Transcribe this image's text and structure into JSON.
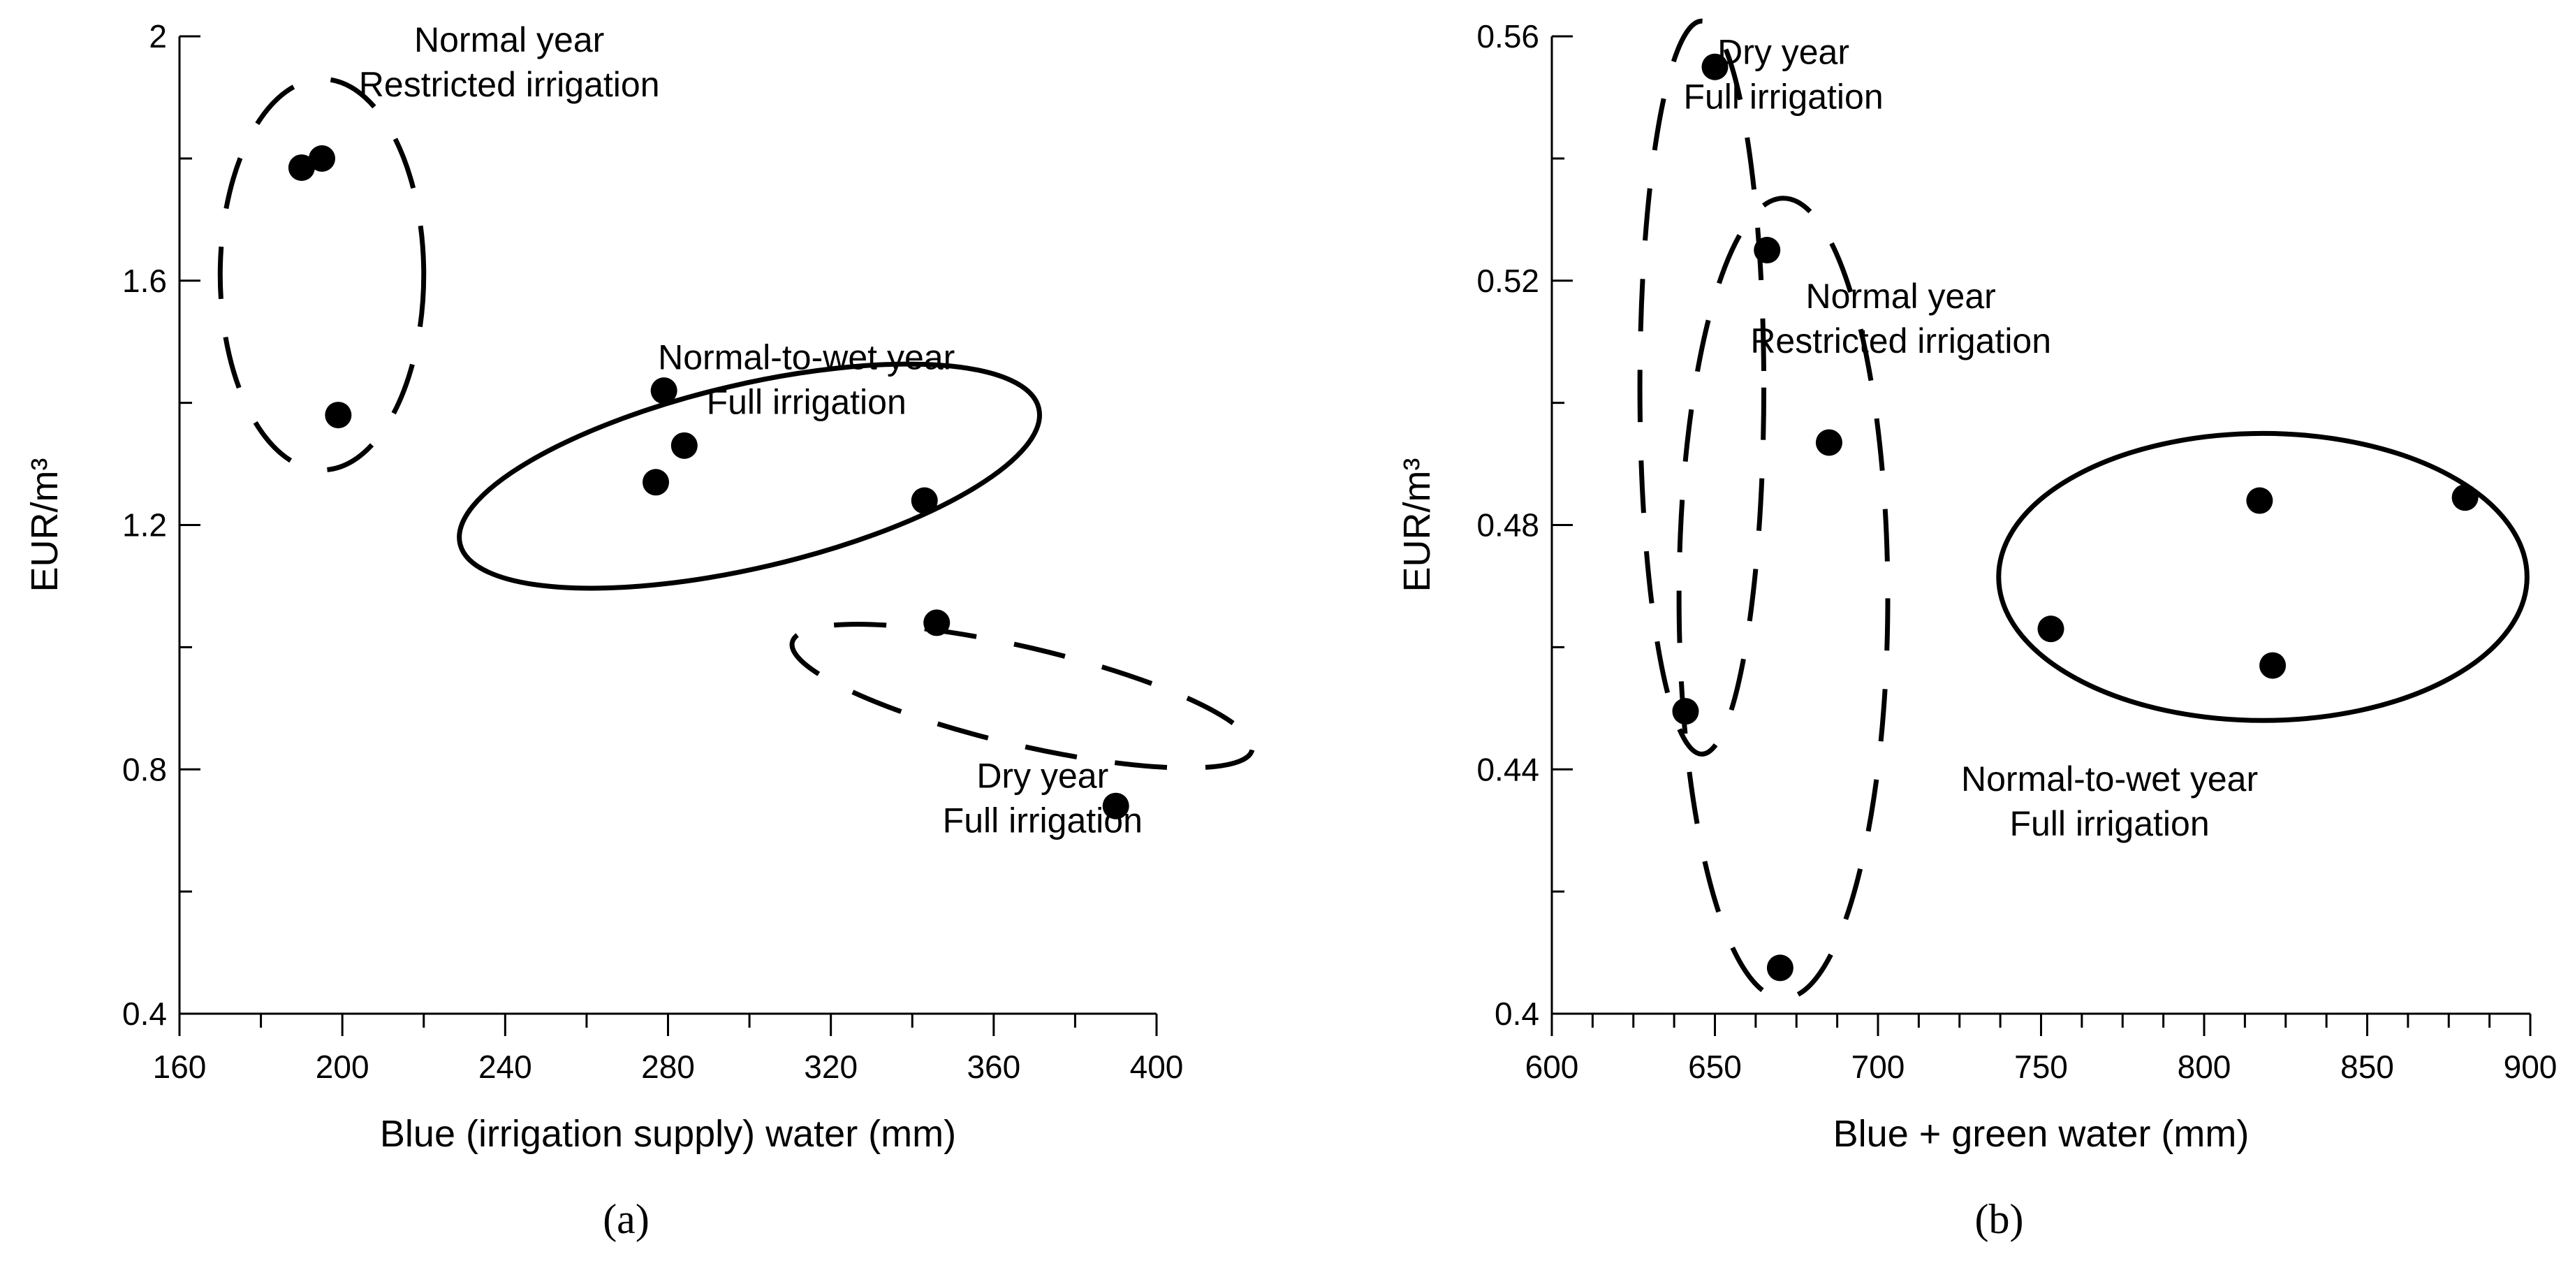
{
  "chart_data": [
    {
      "type": "scatter",
      "panel_label": "(a)",
      "xlabel": "Blue (irrigation supply) water (mm)",
      "ylabel": "EUR/m³",
      "xlim": [
        160,
        400
      ],
      "ylim": [
        0.4,
        2.0
      ],
      "x_ticks": [
        160,
        200,
        240,
        280,
        320,
        360,
        400
      ],
      "x_tick_labels": [
        "160",
        "200",
        "240",
        "280",
        "320",
        "360",
        "400"
      ],
      "x_minor_step": 20,
      "y_ticks": [
        0.4,
        0.8,
        1.2,
        1.6,
        2.0
      ],
      "y_tick_labels": [
        "0.4",
        "0.8",
        "1.2",
        "1.6",
        "2"
      ],
      "y_minor_step": 0.2,
      "points": [
        {
          "x": 190,
          "y": 1.785
        },
        {
          "x": 195,
          "y": 1.8
        },
        {
          "x": 199,
          "y": 1.38
        },
        {
          "x": 279,
          "y": 1.42
        },
        {
          "x": 284,
          "y": 1.33
        },
        {
          "x": 277,
          "y": 1.27
        },
        {
          "x": 343,
          "y": 1.24
        },
        {
          "x": 346,
          "y": 1.04
        },
        {
          "x": 390,
          "y": 0.74
        }
      ],
      "groups": [
        {
          "name": "Normal year, Restricted irrigation",
          "style": "dashed",
          "cx": 195,
          "cy": 1.61,
          "rx": 25,
          "ry": 0.32,
          "angle": 0
        },
        {
          "name": "Normal-to-wet year, Full irrigation",
          "style": "solid",
          "cx": 300,
          "cy": 1.28,
          "rx": 73,
          "ry": 0.15,
          "angle": 0.23
        },
        {
          "name": "Dry year, Full irrigation",
          "style": "dashed",
          "cx": 367,
          "cy": 0.92,
          "rx": 58,
          "ry": 0.08,
          "angle": -0.23
        }
      ],
      "annotations": [
        {
          "lines": [
            "Normal year",
            "Restricted irrigation"
          ],
          "x": 241,
          "y": 1.975
        },
        {
          "lines": [
            "Normal-to-wet year",
            "Full irrigation"
          ],
          "x": 314,
          "y": 1.455
        },
        {
          "lines": [
            "Dry year",
            "Full irrigation"
          ],
          "x": 372,
          "y": 0.77
        }
      ]
    },
    {
      "type": "scatter",
      "panel_label": "(b)",
      "xlabel": "Blue + green water (mm)",
      "ylabel": "EUR/m³",
      "xlim": [
        600,
        900
      ],
      "ylim": [
        0.4,
        0.56
      ],
      "x_ticks": [
        600,
        650,
        700,
        750,
        800,
        850,
        900
      ],
      "x_tick_labels": [
        "600",
        "650",
        "700",
        "750",
        "800",
        "850",
        "900"
      ],
      "x_minor_step": 12.5,
      "y_ticks": [
        0.4,
        0.44,
        0.48,
        0.52,
        0.56
      ],
      "y_tick_labels": [
        "0.4",
        "0.44",
        "0.48",
        "0.52",
        "0.56"
      ],
      "y_minor_step": 0.02,
      "points": [
        {
          "x": 650,
          "y": 0.555
        },
        {
          "x": 666,
          "y": 0.525
        },
        {
          "x": 685,
          "y": 0.4935
        },
        {
          "x": 641,
          "y": 0.4495
        },
        {
          "x": 670,
          "y": 0.4075
        },
        {
          "x": 753,
          "y": 0.463
        },
        {
          "x": 817,
          "y": 0.484
        },
        {
          "x": 880,
          "y": 0.4845
        },
        {
          "x": 821,
          "y": 0.457
        }
      ],
      "groups": [
        {
          "name": "Dry year, Full irrigation",
          "style": "dashed",
          "cx": 646,
          "cy": 0.5025,
          "rx": 19,
          "ry": 0.06,
          "angle": 0
        },
        {
          "name": "Normal year, Restricted irrigation",
          "style": "dashed",
          "cx": 671,
          "cy": 0.468,
          "rx": 32,
          "ry": 0.0655,
          "angle": 0
        },
        {
          "name": "Normal-to-wet year, Full irrigation",
          "style": "solid",
          "cx": 818,
          "cy": 0.4715,
          "rx": 81,
          "ry": 0.0235,
          "angle": 0
        }
      ],
      "annotations": [
        {
          "lines": [
            "Dry year",
            "Full irrigation"
          ],
          "x": 671,
          "y": 0.5555
        },
        {
          "lines": [
            "Normal year",
            "Restricted irrigation"
          ],
          "x": 707,
          "y": 0.5155
        },
        {
          "lines": [
            "Normal-to-wet year",
            "Full irrigation"
          ],
          "x": 771,
          "y": 0.4365
        }
      ]
    }
  ]
}
